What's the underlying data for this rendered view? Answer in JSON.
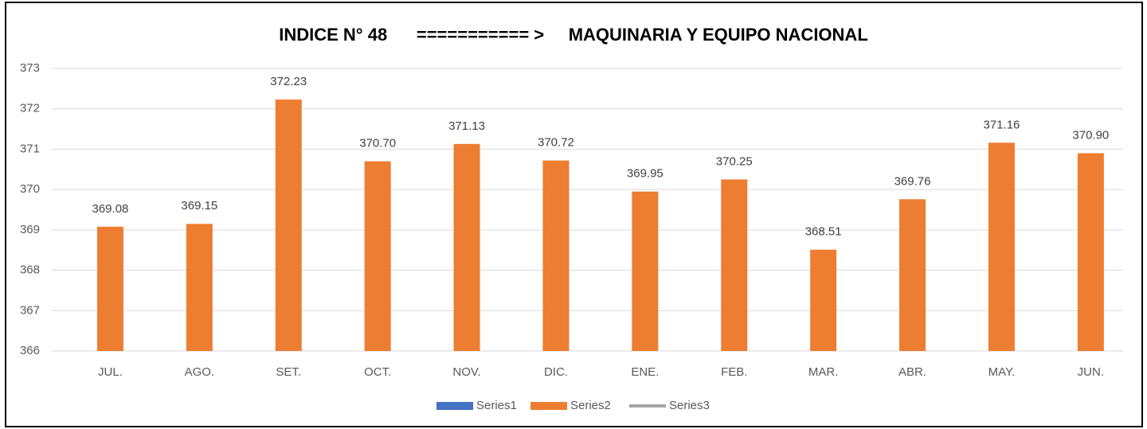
{
  "chart_data": {
    "type": "bar",
    "title": "INDICE N° 48      =========== >     MAQUINARIA Y EQUIPO NACIONAL",
    "categories": [
      "JUL.",
      "AGO.",
      "SET.",
      "OCT.",
      "NOV.",
      "DIC.",
      "ENE.",
      "FEB.",
      "MAR.",
      "ABR.",
      "MAY.",
      "JUN."
    ],
    "series": [
      {
        "name": "Series1",
        "color": "#4472c4",
        "type": "bar",
        "values": [
          null,
          null,
          null,
          null,
          null,
          null,
          null,
          null,
          null,
          null,
          null,
          null
        ]
      },
      {
        "name": "Series2",
        "color": "#ed7d31",
        "type": "bar",
        "values": [
          369.08,
          369.15,
          372.23,
          370.7,
          371.13,
          370.72,
          369.95,
          370.25,
          368.51,
          369.76,
          371.16,
          370.9
        ],
        "value_labels": [
          "369.08",
          "369.15",
          "372.23",
          "370.70",
          "371.13",
          "370.72",
          "369.95",
          "370.25",
          "368.51",
          "369.76",
          "371.16",
          "370.90"
        ]
      },
      {
        "name": "Series3",
        "color": "#a5a5a5",
        "type": "line",
        "values": [
          null,
          null,
          null,
          null,
          null,
          null,
          null,
          null,
          null,
          null,
          null,
          null
        ]
      }
    ],
    "ylim": [
      366,
      373
    ],
    "yticks": [
      366,
      367,
      368,
      369,
      370,
      371,
      372,
      373
    ],
    "grid": true,
    "legend": "bottom"
  }
}
